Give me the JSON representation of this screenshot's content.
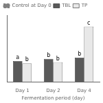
{
  "chart_data": {
    "type": "bar",
    "categories": [
      "Day 1",
      "Day 2",
      "Day 4"
    ],
    "xlabel": "Fermentation period (day)",
    "ylim": [
      0,
      5.8
    ],
    "series": [
      {
        "name": "Control at Day 0",
        "type": "line",
        "color": "#808080",
        "line_style": "dashed",
        "marker": "square",
        "values": [
          null,
          null,
          null
        ]
      },
      {
        "name": "TBL",
        "color": "#5a5a5a",
        "values": [
          1.8,
          2.0,
          2.1
        ]
      },
      {
        "name": "TP",
        "color": "#e8e8e8",
        "values": [
          1.6,
          1.7,
          4.8
        ]
      }
    ],
    "annotations": [
      {
        "text": "a",
        "category": "Day 1",
        "series": "TBL"
      },
      {
        "text": "b",
        "category": "Day 1",
        "series": "TP"
      },
      {
        "text": "b",
        "category": "Day 2",
        "series": "TBL"
      },
      {
        "text": "b",
        "category": "Day 2",
        "series": "TP"
      },
      {
        "text": "b",
        "category": "Day 4",
        "series": "TBL"
      },
      {
        "text": "c",
        "category": "Day 4",
        "series": "TP"
      }
    ],
    "grid": false,
    "legend": "upper left",
    "tick_labels": "x"
  }
}
